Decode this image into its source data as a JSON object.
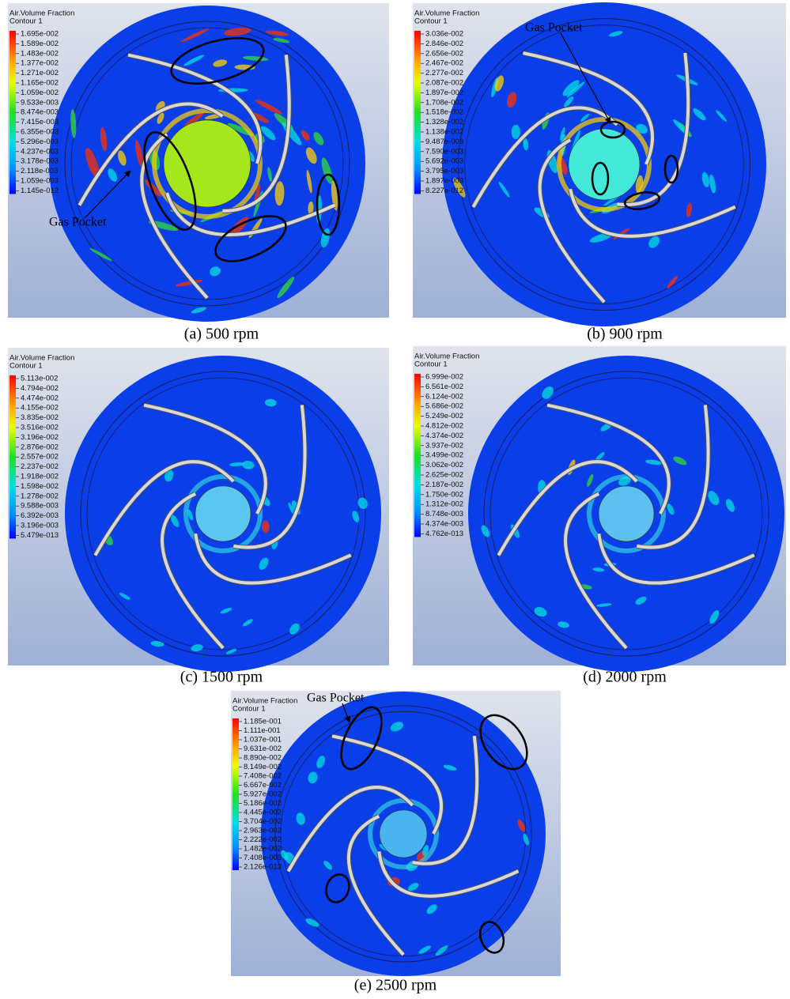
{
  "figure": {
    "panels": [
      {
        "legend_title": "Air.Volume Fraction",
        "legend_subtitle": "Contour 1",
        "legend_labels": [
          "1.695e-002",
          "1.589e-002",
          "1.483e-002",
          "1.377e-002",
          "1.271e-002",
          "1.165e-002",
          "1.059e-002",
          "9.533e-003",
          "8.474e-003",
          "7.415e-003",
          "6.355e-003",
          "5.296e-003",
          "4.237e-003",
          "3.178e-003",
          "2.118e-003",
          "1.059e-003",
          "1.145e-012"
        ],
        "caption": "(a)   500 rpm",
        "annotation": "Gas Pocket"
      },
      {
        "legend_title": "Air.Volume Fraction",
        "legend_subtitle": "Contour 1",
        "legend_labels": [
          "3.036e-002",
          "2.846e-002",
          "2.656e-002",
          "2.467e-002",
          "2.277e-002",
          "2.087e-002",
          "1.897e-002",
          "1.708e-002",
          "1.518e-002",
          "1.328e-002",
          "1.138e-002",
          "9.487e-003",
          "7.590e-003",
          "5.692e-003",
          "3.795e-003",
          "1.897e-003",
          "8.227e-012"
        ],
        "caption": "(b)   900 rpm",
        "annotation": "Gas Pocket"
      },
      {
        "legend_title": "Air.Volume Fraction",
        "legend_subtitle": "Contour 1",
        "legend_labels": [
          "5.113e-002",
          "4.794e-002",
          "4.474e-002",
          "4.155e-002",
          "3.835e-002",
          "3.516e-002",
          "3.196e-002",
          "2.876e-002",
          "2.557e-002",
          "2.237e-002",
          "1.918e-002",
          "1.598e-002",
          "1.278e-002",
          "9.588e-003",
          "6.392e-003",
          "3.196e-003",
          "5.479e-013"
        ],
        "caption": "(c)   1500 rpm"
      },
      {
        "legend_title": "Air.Volume Fraction",
        "legend_subtitle": "Contour 1",
        "legend_labels": [
          "6.999e-002",
          "6.561e-002",
          "6.124e-002",
          "5.686e-002",
          "5.249e-002",
          "4.812e-002",
          "4.374e-002",
          "3.937e-002",
          "3.499e-002",
          "3.062e-002",
          "2.625e-002",
          "2.187e-002",
          "1.750e-002",
          "1.312e-002",
          "8.748e-003",
          "4.374e-003",
          "4.762e-013"
        ],
        "caption": "(d)   2000 rpm"
      },
      {
        "legend_title": "Air.Volume Fraction",
        "legend_subtitle": "Contour 1",
        "legend_labels": [
          "1.185e-001",
          "1.111e-001",
          "1.037e-001",
          "9.631e-002",
          "8.890e-002",
          "8.149e-002",
          "7.408e-002",
          "6.667e-002",
          "5.927e-002",
          "5.186e-002",
          "4.445e-002",
          "3.704e-002",
          "2.963e-002",
          "2.222e-002",
          "1.482e-002",
          "7.408e-003",
          "2.126e-013"
        ],
        "caption": "(e)   2500 rpm",
        "annotation": "Gas Pocket"
      }
    ]
  }
}
